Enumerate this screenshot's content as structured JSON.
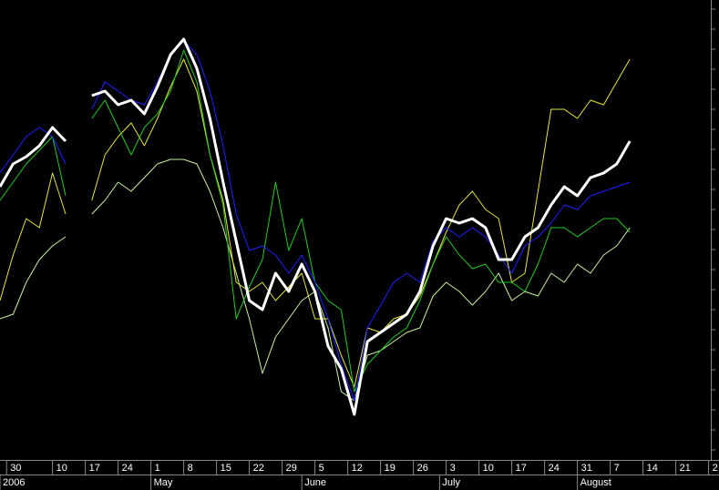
{
  "chart_data": {
    "type": "line",
    "x": [
      0,
      2,
      4,
      6,
      8,
      10,
      12,
      14,
      16,
      18,
      20,
      22,
      24,
      26,
      28,
      30,
      32,
      34,
      36,
      38,
      40,
      42,
      44,
      46,
      48,
      50,
      52,
      54,
      56,
      58,
      60,
      62,
      64,
      66,
      68,
      70,
      72,
      74,
      76,
      78,
      80,
      82,
      84,
      86,
      88,
      90,
      92,
      94,
      96
    ],
    "xlim": [
      0,
      108
    ],
    "xticks": [
      {
        "value": 1,
        "label": "30"
      },
      {
        "value": 8,
        "label": "10"
      },
      {
        "value": 13,
        "label": "17"
      },
      {
        "value": 18,
        "label": "24"
      },
      {
        "value": 23,
        "label": "1"
      },
      {
        "value": 28,
        "label": "8"
      },
      {
        "value": 33,
        "label": "15"
      },
      {
        "value": 38,
        "label": "22"
      },
      {
        "value": 43,
        "label": "29"
      },
      {
        "value": 48,
        "label": "5"
      },
      {
        "value": 53,
        "label": "12"
      },
      {
        "value": 58,
        "label": "19"
      },
      {
        "value": 63,
        "label": "26"
      },
      {
        "value": 68,
        "label": "3"
      },
      {
        "value": 73,
        "label": "10"
      },
      {
        "value": 78,
        "label": "17"
      },
      {
        "value": 83,
        "label": "24"
      },
      {
        "value": 88,
        "label": "31"
      },
      {
        "value": 93,
        "label": "7"
      },
      {
        "value": 98,
        "label": "14"
      },
      {
        "value": 103,
        "label": "21"
      },
      {
        "value": 108,
        "label": "2"
      }
    ],
    "month_ticks": [
      {
        "value": 0,
        "label": "2006"
      },
      {
        "value": 23,
        "label": "May"
      },
      {
        "value": 46,
        "label": "June"
      },
      {
        "value": 67,
        "label": "July"
      },
      {
        "value": 88,
        "label": "August"
      }
    ],
    "ylim": [
      0,
      100
    ],
    "series": [
      {
        "name": "pale",
        "color": "#c8f0a0",
        "width": 1,
        "values": [
          30,
          31,
          38,
          43,
          46,
          48,
          null,
          53,
          56,
          60,
          58,
          61,
          64,
          65,
          65,
          64,
          58,
          50,
          40,
          30,
          18,
          26,
          30,
          34,
          36,
          28,
          14,
          12,
          22,
          23,
          25,
          27,
          28,
          35,
          38,
          36,
          33,
          36,
          40,
          34,
          36,
          35,
          40,
          38,
          42,
          40,
          44,
          46,
          50
        ]
      },
      {
        "name": "yellow",
        "color": "#e6e633",
        "width": 1,
        "values": [
          34,
          44,
          52,
          50,
          62,
          53,
          null,
          56,
          66,
          70,
          73,
          68,
          74,
          81,
          87,
          80,
          66,
          56,
          38,
          36,
          38,
          34,
          37,
          40,
          30,
          30,
          22,
          15,
          28,
          27,
          30,
          31,
          35,
          42,
          49,
          55,
          58,
          54,
          52,
          38,
          40,
          58,
          76,
          76,
          74,
          78,
          77,
          82,
          87
        ]
      },
      {
        "name": "green",
        "color": "#22cc22",
        "width": 1,
        "values": [
          56,
          60,
          64,
          67,
          70,
          57,
          null,
          74,
          78,
          72,
          66,
          72,
          75,
          80,
          89,
          82,
          66,
          55,
          30,
          37,
          43,
          60,
          45,
          52,
          38,
          34,
          32,
          14,
          20,
          23,
          26,
          28,
          34,
          42,
          48,
          44,
          41,
          42,
          38,
          38,
          36,
          42,
          50,
          50,
          48,
          50,
          52,
          52,
          49
        ]
      },
      {
        "name": "blue",
        "color": "#2020ff",
        "width": 1,
        "values": [
          62,
          66,
          70,
          72,
          70,
          64,
          null,
          76,
          82,
          80,
          78,
          77,
          82,
          88,
          91,
          88,
          80,
          68,
          53,
          45,
          46,
          44,
          40,
          44,
          38,
          30,
          20,
          12,
          28,
          33,
          38,
          40,
          38,
          47,
          50,
          48,
          50,
          48,
          44,
          40,
          46,
          48,
          51,
          55,
          54,
          57,
          58,
          59,
          60
        ]
      },
      {
        "name": "white",
        "color": "#ffffff",
        "width": 3,
        "values": [
          59,
          64,
          65.6,
          68,
          72,
          69,
          null,
          79,
          80,
          77,
          78,
          75,
          81,
          88,
          91.4,
          85,
          74,
          60,
          47,
          34,
          32,
          40,
          36,
          42,
          36,
          24,
          19,
          9,
          25,
          27,
          29,
          31,
          36,
          46,
          52,
          51,
          52,
          50,
          43,
          43,
          48,
          50,
          55,
          59,
          57,
          61,
          62,
          64,
          69
        ]
      }
    ]
  }
}
